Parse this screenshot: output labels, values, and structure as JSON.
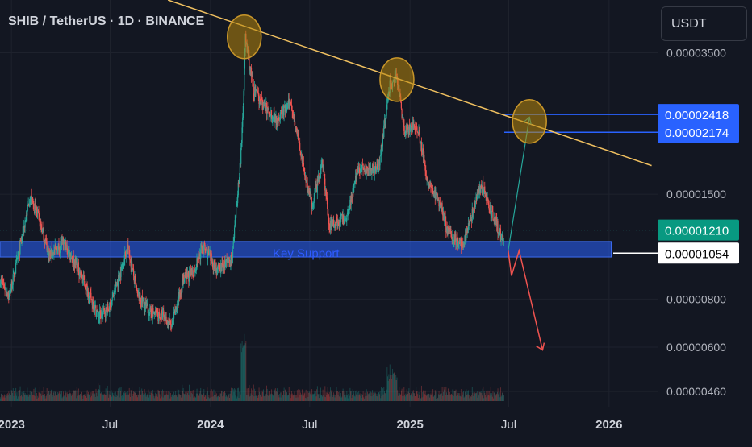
{
  "header": {
    "title": "SHIB / TetherUS · 1D · BINANCE"
  },
  "currency_button": {
    "label": "USDT"
  },
  "colors": {
    "background": "#131722",
    "up_candle": "#26a69a",
    "down_candle": "#ef5350",
    "trendline": "#f0c060",
    "support_band": "#2d5bd4",
    "level_line": "#2962ff",
    "forecast_up": "#26a69a",
    "forecast_down": "#ef5350",
    "marker": "#b8860b"
  },
  "chart_data": {
    "type": "candlestick",
    "symbol": "SHIB / TetherUS",
    "interval": "1D",
    "exchange": "BINANCE",
    "scale": "log",
    "y_range": [
      4.2e-06,
      4.8e-05
    ],
    "y_ticks": [
      "0.00003500",
      "0.00001500",
      "0.00000800",
      "0.00000600",
      "0.00000460"
    ],
    "y_tick_values": [
      3.5e-05,
      1.5e-05,
      8e-06,
      6e-06,
      4.6e-06
    ],
    "x_ticks": [
      "2023",
      "Jul",
      "2024",
      "Jul",
      "2025",
      "Jul",
      "2026"
    ],
    "x_tick_dates": [
      "2023-01-01",
      "2023-07-01",
      "2024-01-01",
      "2024-07-01",
      "2025-01-01",
      "2025-07-01",
      "2026-01-01"
    ],
    "x_range": [
      "2022-12-11",
      "2026-03-31"
    ],
    "price_path": [
      [
        "2022-12-11",
        9e-06
      ],
      [
        "2022-12-28",
        8.2e-06
      ],
      [
        "2023-01-10",
        9.8e-06
      ],
      [
        "2023-02-04",
        1.48e-05
      ],
      [
        "2023-02-20",
        1.3e-05
      ],
      [
        "2023-03-12",
        1.04e-05
      ],
      [
        "2023-04-06",
        1.12e-05
      ],
      [
        "2023-05-01",
        9.8e-06
      ],
      [
        "2023-06-10",
        7.2e-06
      ],
      [
        "2023-06-30",
        7.6e-06
      ],
      [
        "2023-07-20",
        9.4e-06
      ],
      [
        "2023-08-02",
        1.1e-05
      ],
      [
        "2023-08-20",
        8.2e-06
      ],
      [
        "2023-09-12",
        7.4e-06
      ],
      [
        "2023-10-08",
        7.2e-06
      ],
      [
        "2023-10-22",
        6.8e-06
      ],
      [
        "2023-11-12",
        9e-06
      ],
      [
        "2023-12-01",
        9.4e-06
      ],
      [
        "2023-12-18",
        1.1e-05
      ],
      [
        "2024-01-14",
        9.5e-06
      ],
      [
        "2024-02-10",
        1.02e-05
      ],
      [
        "2024-02-27",
        2e-05
      ],
      [
        "2024-03-05",
        3.8e-05
      ],
      [
        "2024-03-20",
        2.8e-05
      ],
      [
        "2024-04-12",
        2.5e-05
      ],
      [
        "2024-05-01",
        2.35e-05
      ],
      [
        "2024-05-28",
        2.6e-05
      ],
      [
        "2024-06-18",
        1.8e-05
      ],
      [
        "2024-07-05",
        1.4e-05
      ],
      [
        "2024-07-25",
        1.8e-05
      ],
      [
        "2024-08-05",
        1.25e-05
      ],
      [
        "2024-09-06",
        1.3e-05
      ],
      [
        "2024-09-28",
        1.75e-05
      ],
      [
        "2024-11-04",
        1.75e-05
      ],
      [
        "2024-11-25",
        2.9e-05
      ],
      [
        "2024-12-08",
        3e-05
      ],
      [
        "2024-12-22",
        2.2e-05
      ],
      [
        "2025-01-15",
        2.25e-05
      ],
      [
        "2025-02-03",
        1.6e-05
      ],
      [
        "2025-02-28",
        1.4e-05
      ],
      [
        "2025-03-10",
        1.2e-05
      ],
      [
        "2025-04-07",
        1.1e-05
      ],
      [
        "2025-04-30",
        1.4e-05
      ],
      [
        "2025-05-12",
        1.6e-05
      ],
      [
        "2025-05-25",
        1.4e-05
      ],
      [
        "2025-06-22",
        1.12e-05
      ]
    ],
    "annotations": {
      "trendline": {
        "from": [
          "2023-10-15",
          4.8e-05
        ],
        "to": [
          "2026-03-20",
          1.78e-05
        ]
      },
      "key_support": {
        "label": "Key Support",
        "low": 1.03e-05,
        "high": 1.13e-05,
        "from": "2022-12-11",
        "to": "2026-01-05"
      },
      "target_levels": [
        2.418e-05,
        2.174e-05
      ],
      "markers": [
        {
          "date": "2024-03-03",
          "value": 3.85e-05
        },
        {
          "date": "2024-12-08",
          "value": 2.98e-05
        },
        {
          "date": "2025-08-08",
          "value": 2.32e-05
        }
      ],
      "forecast_up": [
        [
          "2025-06-30",
          1.07e-05
        ],
        [
          "2025-08-08",
          2.38e-05
        ]
      ],
      "forecast_down": [
        [
          "2025-06-30",
          1.07e-05
        ],
        [
          "2025-07-06",
          9.2e-06
        ],
        [
          "2025-07-20",
          1.07e-05
        ],
        [
          "2025-09-01",
          5.9e-06
        ]
      ]
    },
    "price_labels": [
      {
        "text": "0.00002418",
        "value": 2.418e-05,
        "style": "blue"
      },
      {
        "text": "0.00002174",
        "value": 2.174e-05,
        "style": "blue"
      },
      {
        "text": "0.00001210",
        "value": 1.21e-05,
        "style": "green"
      },
      {
        "text": "0.00001054",
        "value": 1.054e-05,
        "style": "white"
      }
    ],
    "last_price": 1.21e-05
  }
}
